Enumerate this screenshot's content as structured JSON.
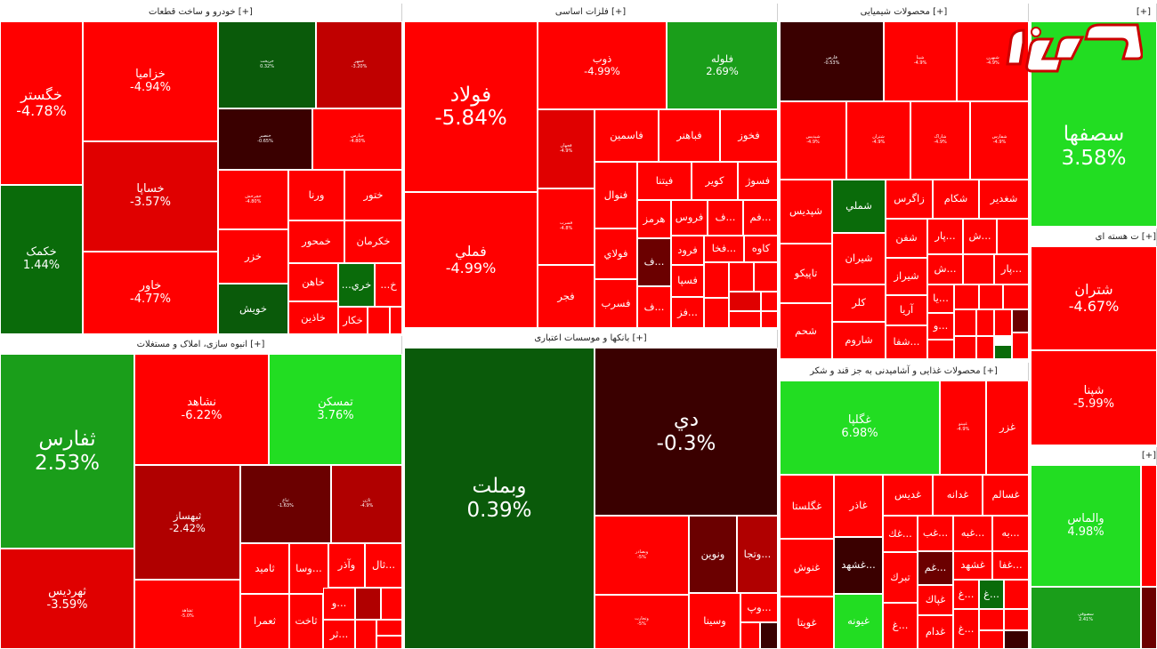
{
  "sectors": {
    "auto": "خودرو و ساخت قطعات [+]",
    "metals": "فلزات اساسی [+]",
    "chem": "محصولات شیمیایی [+]",
    "right_top": "[+]",
    "mass": "انبوه سازی، املاک و مستغلات [+]",
    "banks": "بانکها و موسسات اعتباری [+]",
    "food": "محصولات غذایی و آشامیدنی به جز قند و شکر [+]",
    "nuclear": "ت هسته ای [+]",
    "right_bottom": "[+]"
  },
  "colors": {
    "red": "#ff0000",
    "red_mid": "#e00000",
    "red_dark": "#b00000",
    "maroon": "#6b0000",
    "darkest": "#3a0000",
    "green_dark": "#0a6b0a",
    "green_mid": "#1a9e1a",
    "green_bright": "#22dd22"
  },
  "tiles": {
    "jegostar": {
      "sym": "خگستر",
      "pct": "-4.78%"
    },
    "khazamia": {
      "sym": "خزامیا",
      "pct": "-4.94%"
    },
    "khesapa": {
      "sym": "خساپا",
      "pct": "-3.57%"
    },
    "khavar": {
      "sym": "خاور",
      "pct": "-4.77%"
    },
    "khakmak": {
      "sym": "خکمک",
      "pct": "1.44%"
    },
    "khrikht": {
      "sym": "خریخت",
      "pct": "0.32%"
    },
    "khamehr": {
      "sym": "خمهر",
      "pct": "-3.20%"
    },
    "a_small1": {
      "sym": "خنصیر",
      "pct": "-0.65%"
    },
    "a_small2": {
      "sym": "خپارس",
      "pct": "-4.80%"
    },
    "a_small3": {
      "sym": "خچرخش",
      "pct": "-4.80%"
    },
    "khvarna": {
      "sym": "ورنا"
    },
    "khtoor": {
      "sym": "ختور"
    },
    "khazar": {
      "sym": "خزر"
    },
    "khamhor": {
      "sym": "خمحور"
    },
    "khakarman": {
      "sym": "خکرمان"
    },
    "khahan": {
      "sym": "خاهن"
    },
    "khrik": {
      "sym": "خري..."
    },
    "kh_s": {
      "sym": "خ..."
    },
    "khvish": {
      "sym": "خویش"
    },
    "khazin": {
      "sym": "خاذین"
    },
    "khakar": {
      "sym": "خکار"
    },
    "folad": {
      "sym": "فولاد",
      "pct": "-5.84%"
    },
    "femeli": {
      "sym": "فملي",
      "pct": "-4.99%"
    },
    "fezob": {
      "sym": "ذوب",
      "pct": "-4.99%"
    },
    "filooleh": {
      "sym": "فلوله",
      "pct": "2.69%"
    },
    "f_small1": {
      "sym": "فجهان",
      "pct": "-4.9%"
    },
    "f_small2": {
      "sym": "فسرب",
      "pct": "-4.8%"
    },
    "fasmin": {
      "sym": "فاسمين"
    },
    "fbahonar": {
      "sym": "فباهنر"
    },
    "fkhooz": {
      "sym": "فخوز"
    },
    "fnoval": {
      "sym": "فنوال"
    },
    "fineta": {
      "sym": "فيتنا"
    },
    "kvir": {
      "sym": "کویر"
    },
    "fsoj": {
      "sym": "فسوژ"
    },
    "fooladi": {
      "sym": "فولاي"
    },
    "hormoz": {
      "sym": "هرمز"
    },
    "froos": {
      "sym": "فروس"
    },
    "f_a": {
      "sym": "...ف"
    },
    "fam": {
      "sym": "...فم"
    },
    "frood": {
      "sym": "فرود"
    },
    "fkha": {
      "sym": "...فخا"
    },
    "kaveh": {
      "sym": "کاوه"
    },
    "fasparb": {
      "sym": "فسرب"
    },
    "fajr": {
      "sym": "فجر"
    },
    "f_b": {
      "sym": "...ف"
    },
    "f_c": {
      "sym": "...ف"
    },
    "fsapa": {
      "sym": "فسپا"
    },
    "fz": {
      "sym": "...فز"
    },
    "c_dark": {
      "sym": "فارس",
      "pct": "-0.53%"
    },
    "c_a": {
      "sym": "شپنا",
      "pct": "-4.9%"
    },
    "c_b": {
      "sym": "شبهرن",
      "pct": "-4.9%"
    },
    "c_c": {
      "sym": "شپدیس",
      "pct": "-4.9%"
    },
    "c_d": {
      "sym": "شتران",
      "pct": "-4.9%"
    },
    "c_e": {
      "sym": "شاراک",
      "pct": "-4.9%"
    },
    "c_f": {
      "sym": "شفارس",
      "pct": "-4.9%"
    },
    "shepdis": {
      "sym": "شپدیس"
    },
    "shemli": {
      "sym": "شملي"
    },
    "zagros": {
      "sym": "زاگرس"
    },
    "shekam": {
      "sym": "شکام"
    },
    "shgadir": {
      "sym": "شغدير"
    },
    "shafan": {
      "sym": "شفن"
    },
    "par1": {
      "sym": "...پار"
    },
    "sh1": {
      "sym": "...ش"
    },
    "tapiko": {
      "sym": "تاپيکو"
    },
    "shiran": {
      "sym": "شيران"
    },
    "shiraz": {
      "sym": "شيراز"
    },
    "sh2": {
      "sym": "...ش"
    },
    "par2": {
      "sym": "...پار"
    },
    "kalar": {
      "sym": "کلر"
    },
    "arya": {
      "sym": "آريا"
    },
    "ya": {
      "sym": "...يا"
    },
    "shasham": {
      "sym": "شحم"
    },
    "sharom": {
      "sym": "شاروم"
    },
    "shafa": {
      "sym": "...شفا"
    },
    "vo": {
      "sym": "...و"
    },
    "sefaha": {
      "sym": "سصفها",
      "pct": "3.58%"
    },
    "tharis": {
      "sym": "ثفارس",
      "pct": "2.53%"
    },
    "nashahed": {
      "sym": "نشاهد",
      "pct": "-6.22%"
    },
    "tamaskan": {
      "sym": "تمسکن",
      "pct": "3.76%"
    },
    "tharadis": {
      "sym": "ثهرديس",
      "pct": "-3.59%"
    },
    "tabasaz": {
      "sym": "ثبهساز",
      "pct": "-2.42%"
    },
    "m_dark": {
      "sym": "ثباغ",
      "pct": "-1.63%"
    },
    "m_a": {
      "sym": "ثاژن",
      "pct": "-4.9%"
    },
    "m_b": {
      "sym": "ثشاهد",
      "pct": "-5.0%"
    },
    "tamid": {
      "sym": "ثاميد"
    },
    "vasa": {
      "sym": "...وسا"
    },
    "vazar": {
      "sym": "وآذر"
    },
    "tal": {
      "sym": "...ثال"
    },
    "tamra": {
      "sym": "ثعمرا"
    },
    "takht": {
      "sym": "ثاخت"
    },
    "v2": {
      "sym": "...و"
    },
    "tr": {
      "sym": "...ثر"
    },
    "vebemellat": {
      "sym": "وبملت",
      "pct": "0.39%"
    },
    "dey": {
      "sym": "دي",
      "pct": "-0.3%"
    },
    "b_a": {
      "sym": "وبصادر",
      "pct": "-5%"
    },
    "vnovin": {
      "sym": "ونوين"
    },
    "vtja": {
      "sym": "...وتجا"
    },
    "vsina": {
      "sym": "وسينا"
    },
    "vp": {
      "sym": "...وپ"
    },
    "b_b": {
      "sym": "وتجارت",
      "pct": "-5%"
    },
    "ghgolpa": {
      "sym": "غگلپا",
      "pct": "6.98%"
    },
    "ghazar": {
      "sym": "غزر"
    },
    "g_a": {
      "sym": "غپینو",
      "pct": "-4.9%"
    },
    "ghgolsta": {
      "sym": "غگلستا"
    },
    "ghazar2": {
      "sym": "غاذر"
    },
    "ghadis": {
      "sym": "غديس"
    },
    "ghadaneh": {
      "sym": "غدانه"
    },
    "ghsalem": {
      "sym": "غسالم"
    },
    "ghanosh": {
      "sym": "غنوش"
    },
    "ghk": {
      "sym": "...غك"
    },
    "gheb": {
      "sym": "...غب"
    },
    "ghbe": {
      "sym": "...غبه"
    },
    "be": {
      "sym": "...به"
    },
    "ghmashhad": {
      "sym": "...غشهد"
    },
    "gham": {
      "sym": "...غم"
    },
    "ghshahd": {
      "sym": "غشهد"
    },
    "ghafa": {
      "sym": "...غفا"
    },
    "tabrak": {
      "sym": "تبرك"
    },
    "ghpak": {
      "sym": "غپاك"
    },
    "gh1": {
      "sym": "...غ"
    },
    "gh2": {
      "sym": "...غ"
    },
    "ghoyta": {
      "sym": "غويتا"
    },
    "ghyoune": {
      "sym": "غيونه"
    },
    "gh3": {
      "sym": "...غ"
    },
    "ghadam": {
      "sym": "غدام"
    },
    "gh4": {
      "sym": "...غ"
    },
    "shtran": {
      "sym": "شتران",
      "pct": "-4.67%"
    },
    "shpna": {
      "sym": "شپنا",
      "pct": "-5.99%"
    },
    "valmas": {
      "sym": "والماس",
      "pct": "4.98%"
    },
    "r_b": {
      "sym": "سصوفي",
      "pct": "2.41%"
    }
  }
}
